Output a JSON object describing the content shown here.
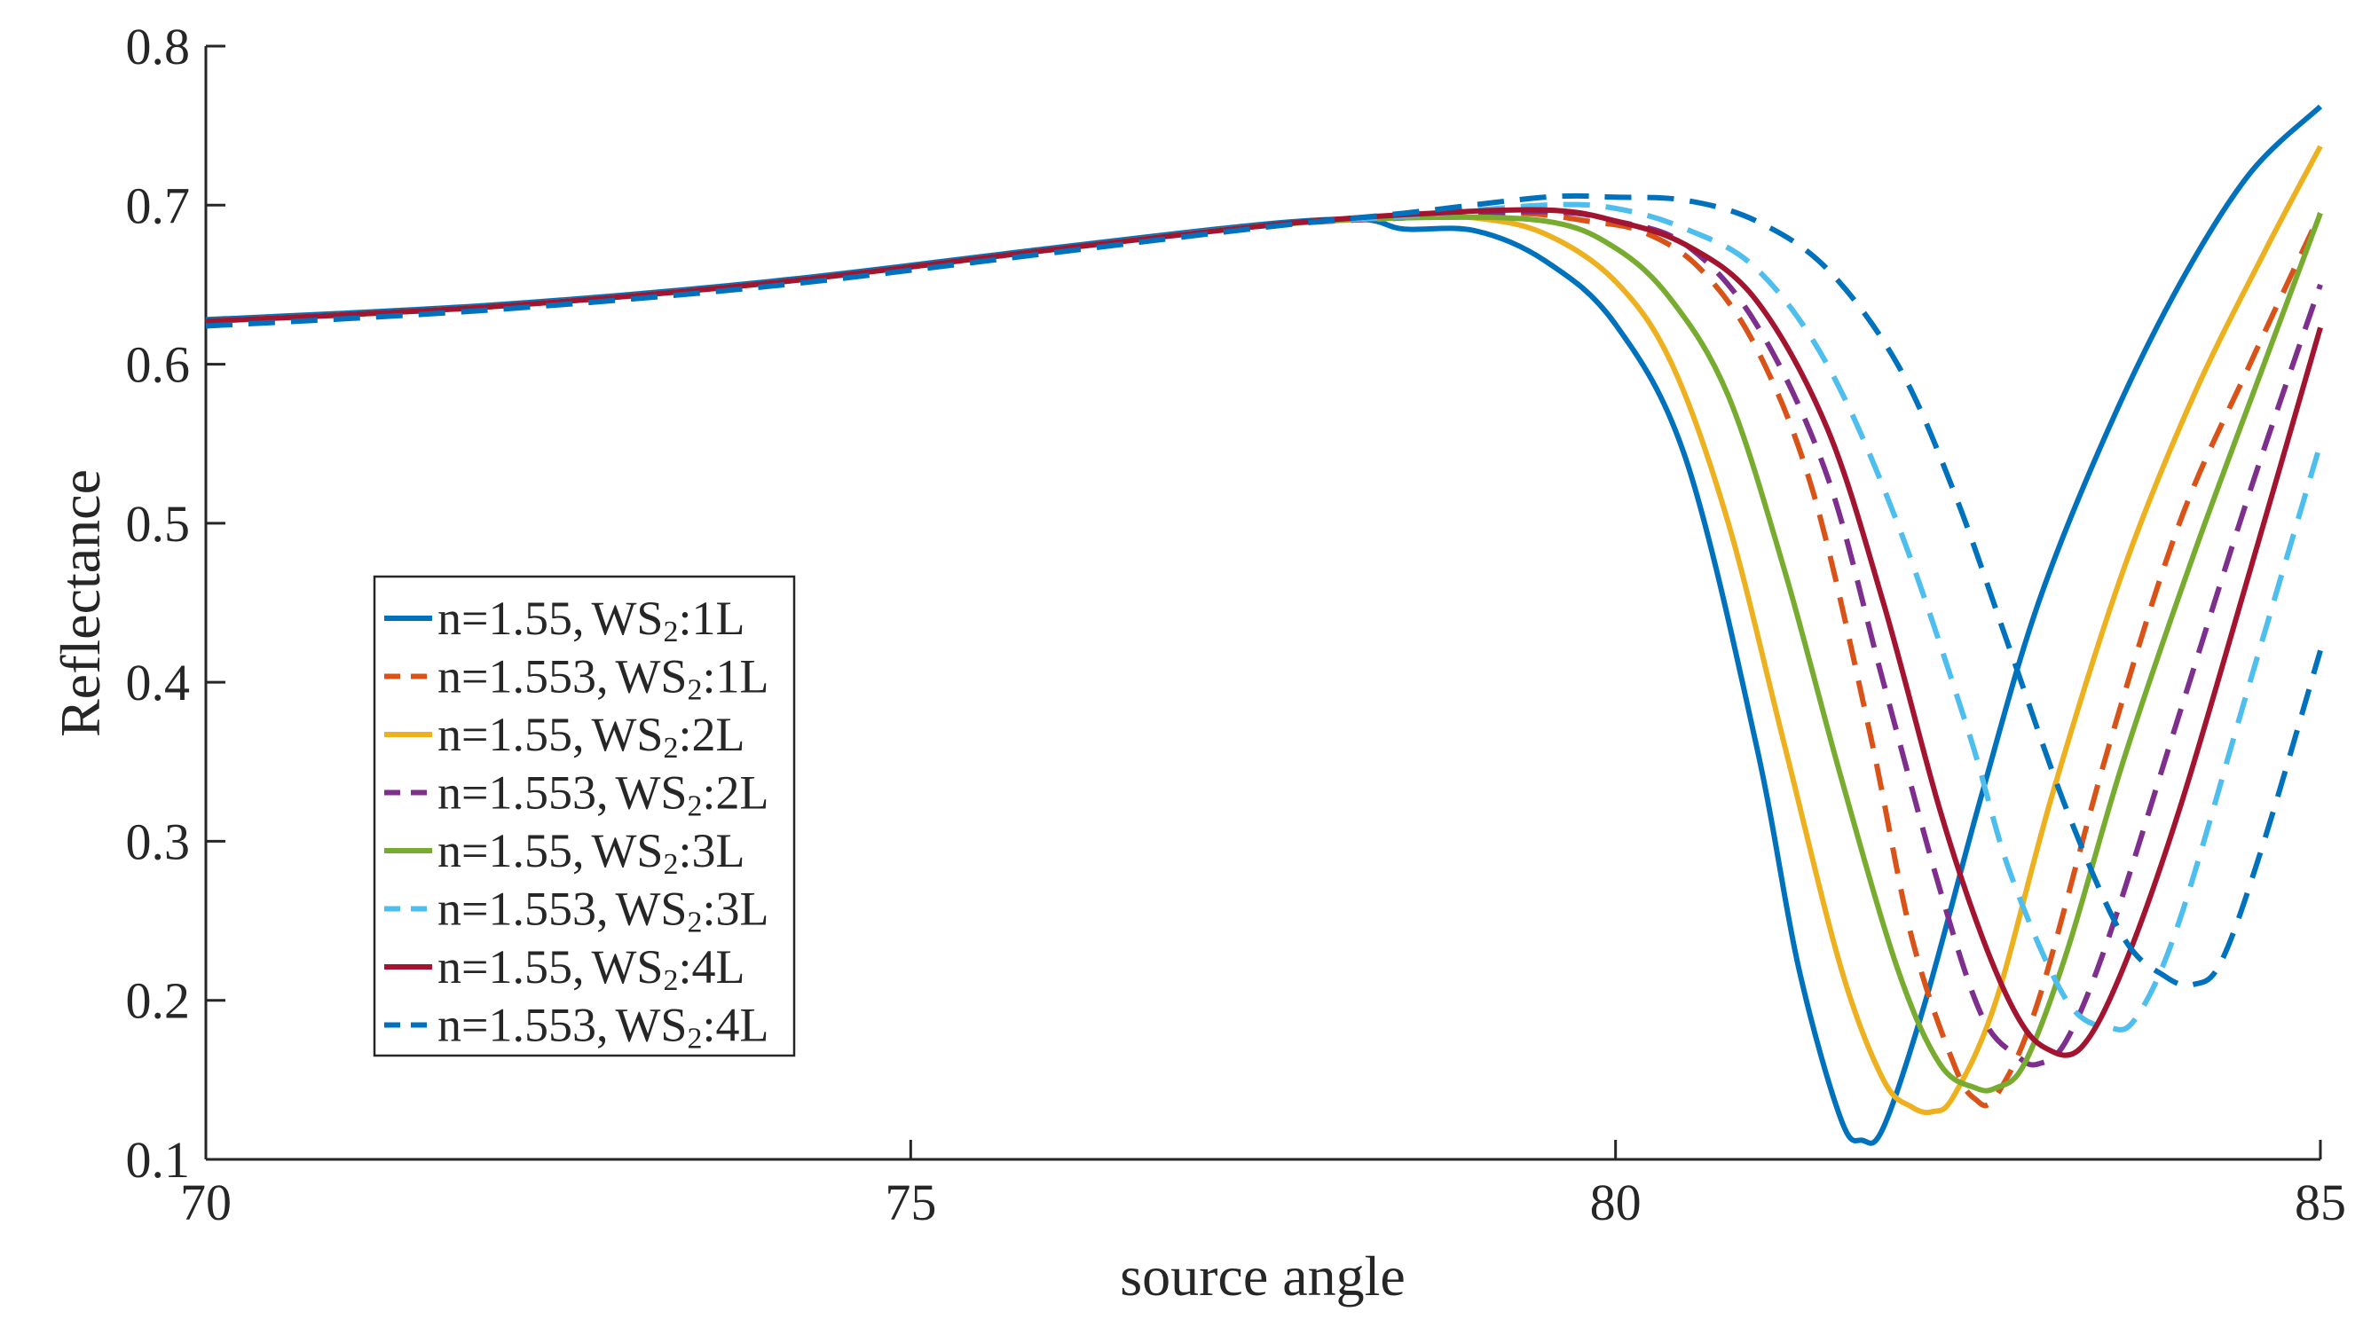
{
  "chart_data": {
    "type": "line",
    "title": "",
    "xlabel": "source angle",
    "ylabel": "Reflectance",
    "xlim": [
      70,
      85
    ],
    "ylim": [
      0.1,
      0.8
    ],
    "xticks": [
      "70",
      "75",
      "80",
      "85"
    ],
    "yticks": [
      "0.1",
      "0.2",
      "0.3",
      "0.4",
      "0.5",
      "0.6",
      "0.7",
      "0.8"
    ],
    "grid": false,
    "legend_position": "center-left",
    "series": [
      {
        "name": "n=1.55, WS2:1L",
        "label_main": "n=1.55,",
        "label_ws": "WS",
        "label_sub": "2",
        "label_layer": ":1L",
        "color": "#0072BD",
        "dash": "solid",
        "x": [
          70,
          72,
          74,
          76,
          77.5,
          78.2,
          78.5,
          79,
          79.5,
          80,
          80.5,
          81,
          81.3,
          81.6,
          81.75,
          81.9,
          82.2,
          82.6,
          83,
          83.5,
          84,
          84.5,
          85
        ],
        "y": [
          0.628,
          0.637,
          0.652,
          0.673,
          0.688,
          0.691,
          0.685,
          0.684,
          0.665,
          0.625,
          0.54,
          0.36,
          0.22,
          0.125,
          0.112,
          0.12,
          0.2,
          0.33,
          0.45,
          0.56,
          0.65,
          0.72,
          0.762
        ]
      },
      {
        "name": "n=1.553, WS2:1L",
        "label_main": "n=1.553,",
        "label_ws": "WS",
        "label_sub": "2",
        "label_layer": ":1L",
        "color": "#D95319",
        "dash": "dashed",
        "x": [
          70,
          72,
          74,
          76,
          77.5,
          78.5,
          79.3,
          79.8,
          80.2,
          80.6,
          81,
          81.4,
          81.8,
          82.1,
          82.4,
          82.55,
          82.7,
          83,
          83.5,
          84,
          84.5,
          85
        ],
        "y": [
          0.626,
          0.636,
          0.651,
          0.672,
          0.687,
          0.692,
          0.695,
          0.69,
          0.683,
          0.66,
          0.61,
          0.52,
          0.37,
          0.24,
          0.16,
          0.138,
          0.14,
          0.2,
          0.36,
          0.5,
          0.6,
          0.695
        ]
      },
      {
        "name": "n=1.55, WS2:2L",
        "label_main": "n=1.55,",
        "label_ws": "WS",
        "label_sub": "2",
        "label_layer": ":2L",
        "color": "#EDB120",
        "dash": "solid",
        "x": [
          70,
          72,
          74,
          76,
          77.5,
          78.5,
          79,
          79.5,
          80,
          80.4,
          80.8,
          81.2,
          81.6,
          81.9,
          82.1,
          82.25,
          82.4,
          82.7,
          83.1,
          83.6,
          84.1,
          84.6,
          85
        ],
        "y": [
          0.627,
          0.636,
          0.651,
          0.672,
          0.687,
          0.692,
          0.692,
          0.682,
          0.652,
          0.6,
          0.5,
          0.36,
          0.22,
          0.15,
          0.133,
          0.13,
          0.14,
          0.2,
          0.33,
          0.47,
          0.58,
          0.67,
          0.737
        ]
      },
      {
        "name": "n=1.553, WS2:2L",
        "label_main": "n=1.553,",
        "label_ws": "WS",
        "label_sub": "2",
        "label_layer": ":2L",
        "color": "#7E2F8E",
        "dash": "dashed",
        "x": [
          70,
          72,
          74,
          76,
          77.5,
          78.5,
          79.5,
          80,
          80.5,
          81,
          81.5,
          81.9,
          82.3,
          82.6,
          82.85,
          83,
          83.2,
          83.5,
          84,
          84.5,
          85
        ],
        "y": [
          0.626,
          0.636,
          0.651,
          0.672,
          0.687,
          0.692,
          0.696,
          0.69,
          0.675,
          0.625,
          0.53,
          0.4,
          0.27,
          0.19,
          0.165,
          0.16,
          0.175,
          0.24,
          0.38,
          0.52,
          0.65
        ]
      },
      {
        "name": "n=1.55, WS2:3L",
        "label_main": "n=1.55,",
        "label_ws": "WS",
        "label_sub": "2",
        "label_layer": ":3L",
        "color": "#77AC30",
        "dash": "solid",
        "x": [
          70,
          72,
          74,
          76,
          77.5,
          78.5,
          79.5,
          80,
          80.4,
          80.8,
          81.2,
          81.6,
          82,
          82.3,
          82.55,
          82.7,
          82.9,
          83.2,
          83.6,
          84.1,
          84.6,
          85
        ],
        "y": [
          0.627,
          0.636,
          0.651,
          0.672,
          0.687,
          0.692,
          0.69,
          0.673,
          0.64,
          0.58,
          0.47,
          0.34,
          0.22,
          0.16,
          0.145,
          0.145,
          0.16,
          0.23,
          0.35,
          0.48,
          0.6,
          0.695
        ]
      },
      {
        "name": "n=1.553, WS2:3L",
        "label_main": "n=1.553,",
        "label_ws": "WS",
        "label_sub": "2",
        "label_layer": ":3L",
        "color": "#4DBEEE",
        "dash": "dashed",
        "x": [
          70,
          72,
          74,
          76,
          77.5,
          78.5,
          79.5,
          80,
          80.5,
          81,
          81.5,
          82,
          82.5,
          82.8,
          83.2,
          83.5,
          83.7,
          84,
          84.5,
          85
        ],
        "y": [
          0.626,
          0.636,
          0.651,
          0.672,
          0.687,
          0.693,
          0.7,
          0.698,
          0.685,
          0.66,
          0.6,
          0.5,
          0.37,
          0.28,
          0.2,
          0.183,
          0.19,
          0.25,
          0.4,
          0.55
        ]
      },
      {
        "name": "n=1.55, WS2:4L",
        "label_main": "n=1.55,",
        "label_ws": "WS",
        "label_sub": "2",
        "label_layer": ":4L",
        "color": "#A2142F",
        "dash": "solid",
        "x": [
          70,
          72,
          74,
          76,
          77.5,
          78.5,
          79.5,
          80,
          80.5,
          81,
          81.5,
          81.9,
          82.3,
          82.6,
          82.85,
          83.05,
          83.3,
          83.6,
          84,
          84.5,
          85
        ],
        "y": [
          0.627,
          0.636,
          0.651,
          0.672,
          0.687,
          0.694,
          0.697,
          0.69,
          0.675,
          0.64,
          0.56,
          0.45,
          0.32,
          0.24,
          0.19,
          0.17,
          0.17,
          0.22,
          0.32,
          0.47,
          0.623
        ]
      },
      {
        "name": "n=1.553, WS2:4L",
        "label_main": "n=1.553,",
        "label_ws": "WS",
        "label_sub": "2",
        "label_layer": ":4L",
        "color": "#0072BD",
        "dash": "dashed",
        "x": [
          70,
          72,
          74,
          76,
          77.5,
          78.5,
          79.5,
          80,
          80.5,
          81,
          81.5,
          82,
          82.4,
          82.8,
          83.2,
          83.6,
          83.9,
          84.1,
          84.3,
          84.6,
          85
        ],
        "y": [
          0.624,
          0.634,
          0.649,
          0.67,
          0.686,
          0.695,
          0.705,
          0.705,
          0.703,
          0.69,
          0.66,
          0.6,
          0.52,
          0.42,
          0.32,
          0.24,
          0.215,
          0.21,
          0.225,
          0.3,
          0.42
        ]
      }
    ]
  }
}
